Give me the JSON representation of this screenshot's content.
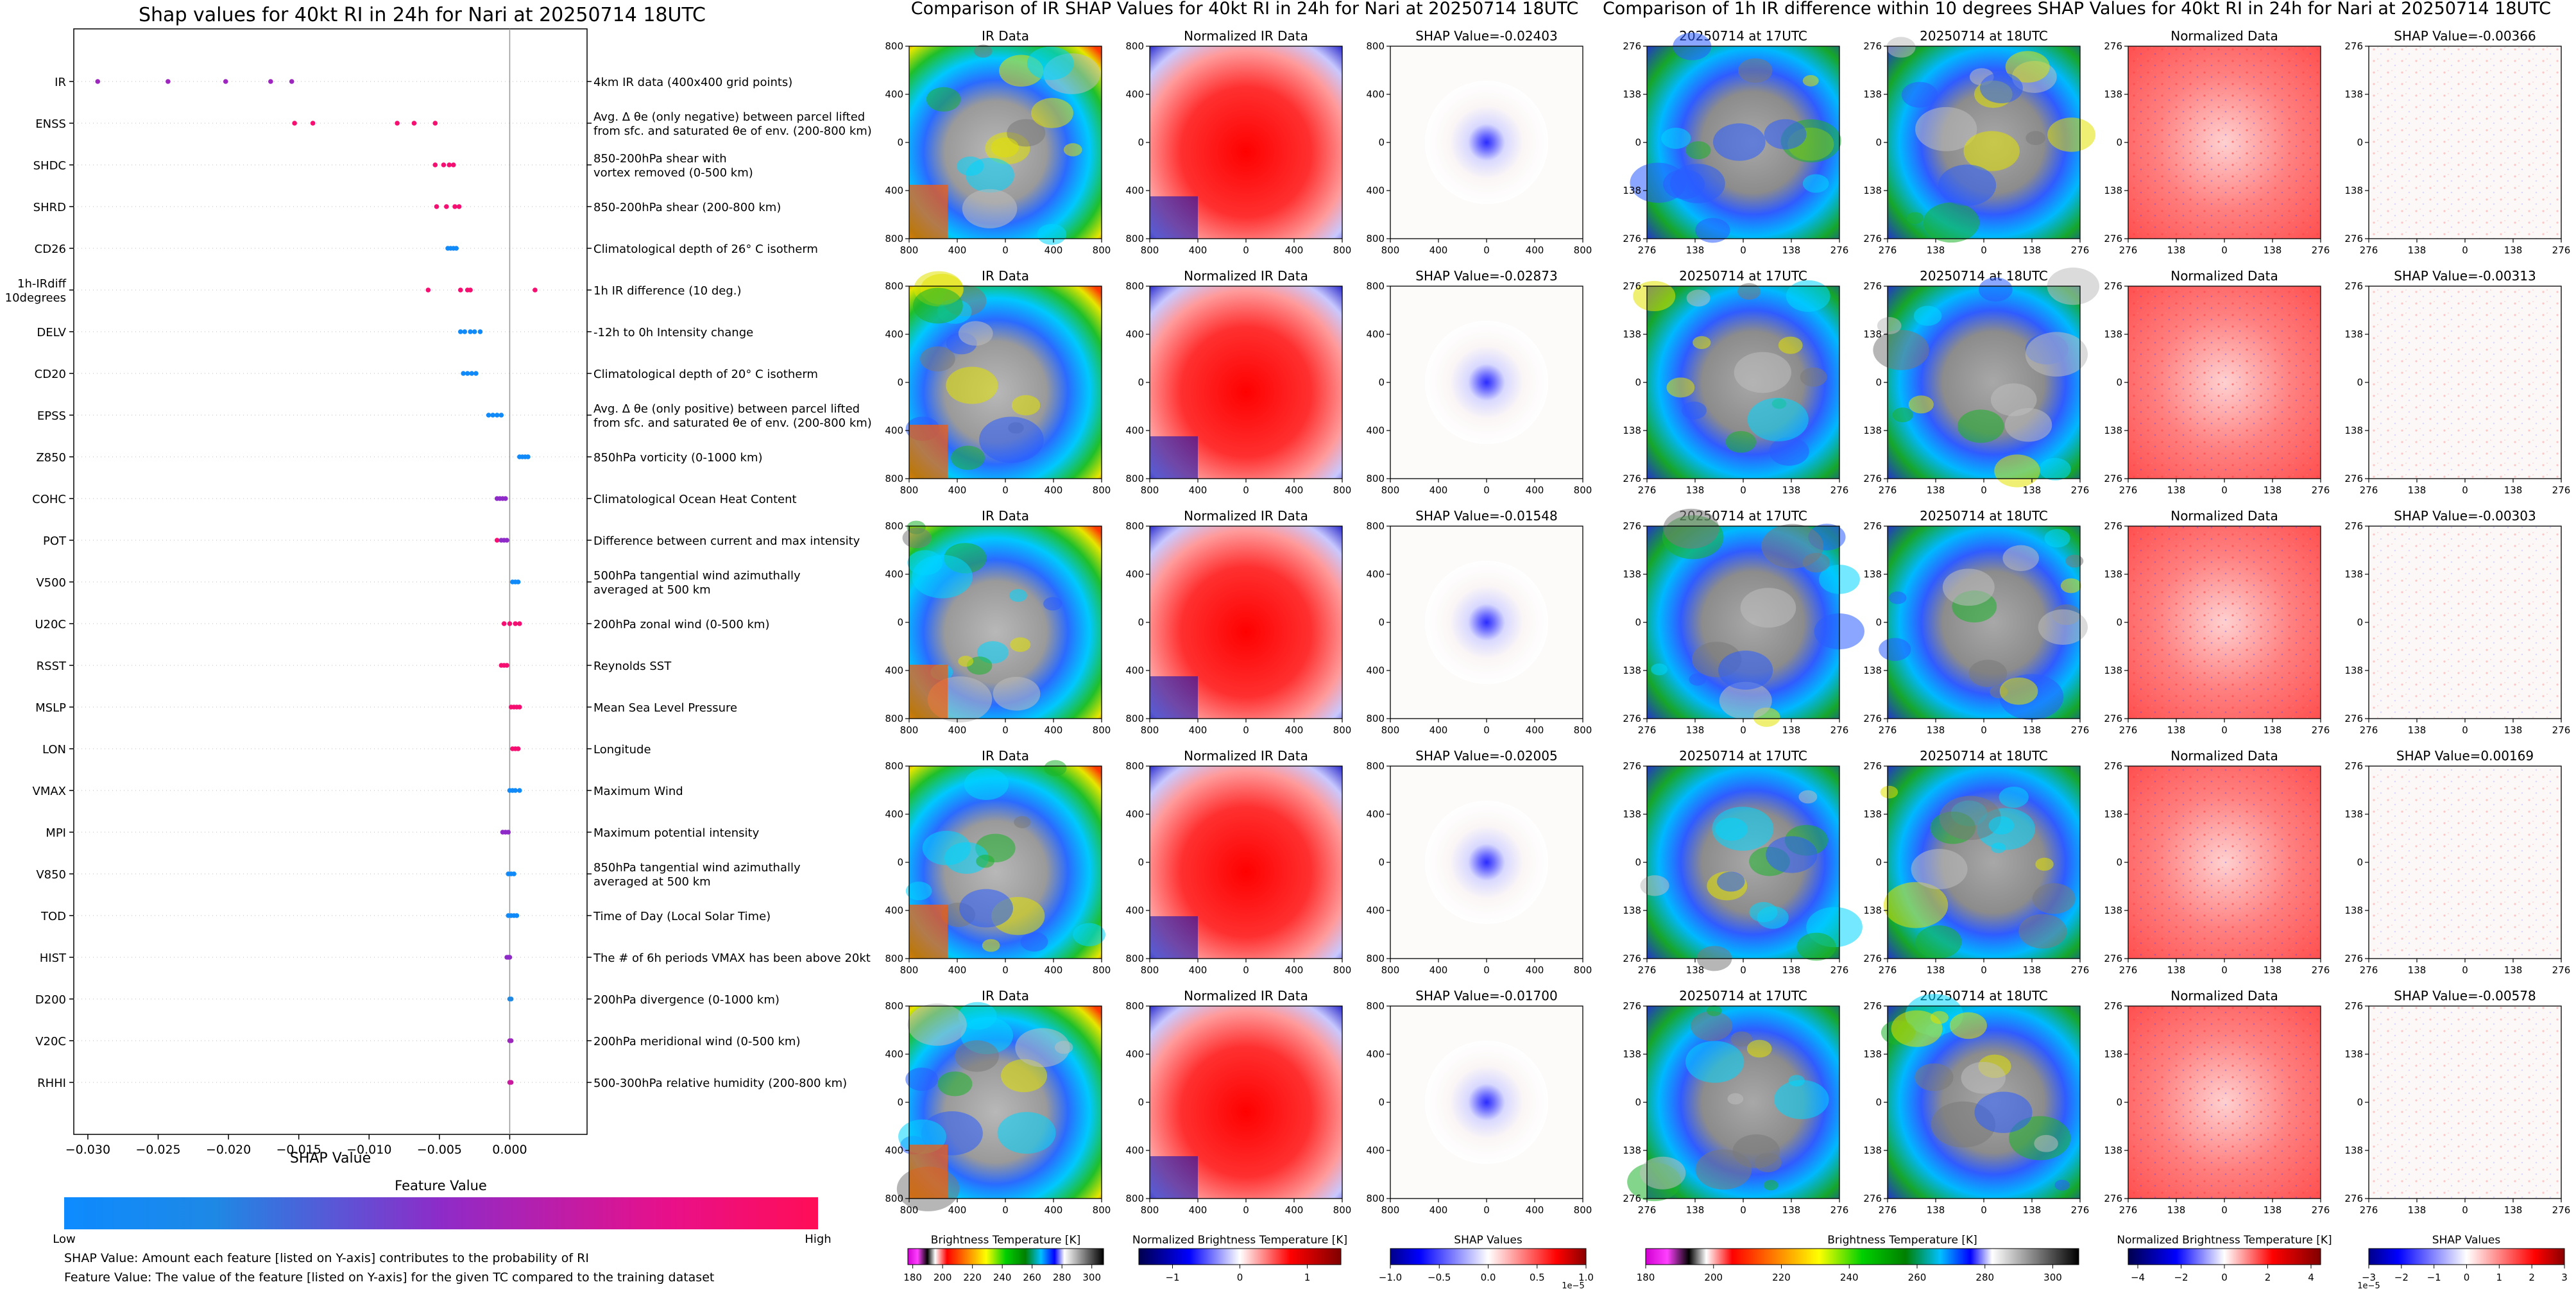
{
  "left_panel": {
    "title": "Shap values for 40kt RI in 24h for Nari at 20250714 18UTC",
    "xlabel": "SHAP Value",
    "xticks": [
      "−0.030",
      "−0.025",
      "−0.020",
      "−0.015",
      "−0.010",
      "−0.005",
      "0.000"
    ],
    "colorbar_title": "Feature Value",
    "colorbar_low": "Low",
    "colorbar_high": "High",
    "footnote_1": "SHAP Value: Amount each feature [listed on Y-axis] contributes to the probability of RI",
    "footnote_2": "Feature Value: The value of the feature [listed on Y-axis] for the given TC compared to the training dataset"
  },
  "middle_panel": {
    "title": "Comparison of IR SHAP Values for 40kt RI in 24h for Nari at 20250714 18UTC",
    "col_titles": [
      "IR Data",
      "Normalized IR Data"
    ],
    "shap_titles": [
      "SHAP Value=-0.02403",
      "SHAP Value=-0.02873",
      "SHAP Value=-0.01548",
      "SHAP Value=-0.02005",
      "SHAP Value=-0.01700"
    ],
    "ytick_labels": [
      "800",
      "400",
      "0",
      "400",
      "800"
    ],
    "xtick_labels": [
      "800",
      "400",
      "0",
      "400",
      "800"
    ],
    "axis_unit": "km",
    "cbar_labels": [
      "Brightness Temperature [K]",
      "Normalized Brightness Temperature [K]",
      "SHAP Values"
    ],
    "cbar1_ticks": [
      "180",
      "200",
      "220",
      "240",
      "260",
      "280",
      "300"
    ],
    "cbar2_ticks": [
      "−1",
      "0",
      "1"
    ],
    "cbar3_ticks": [
      "−1.0",
      "−0.5",
      "0.0",
      "0.5",
      "1.0"
    ],
    "cbar3_exp": "1e−5"
  },
  "right_panel": {
    "title": "Comparison of 1h IR difference within 10 degrees SHAP Values for 40kt RI in 24h for Nari at 20250714 18UTC",
    "col_titles": [
      "20250714 at 17UTC",
      "20250714 at 18UTC",
      "Normalized Data"
    ],
    "shap_titles": [
      "SHAP Value=-0.00366",
      "SHAP Value=-0.00313",
      "SHAP Value=-0.00303",
      "SHAP Value=0.00169",
      "SHAP Value=-0.00578"
    ],
    "tick_labels": [
      "276",
      "138",
      "0",
      "138",
      "276"
    ],
    "axis_unit": "km",
    "cbar_labels": [
      "Brightness Temperature [K]",
      "Normalized Brightness Temperature [K]",
      "SHAP Values"
    ],
    "cbar1_ticks": [
      "180",
      "200",
      "220",
      "240",
      "260",
      "280",
      "300"
    ],
    "cbar2_ticks": [
      "−4",
      "−2",
      "0",
      "2",
      "4"
    ],
    "cbar3_ticks": [
      "−3",
      "−2",
      "−1",
      "0",
      "1",
      "2",
      "3"
    ],
    "cbar3_exp": "1e−5"
  },
  "colors": {
    "low": "#1e88e5",
    "high": "#ff0d57"
  },
  "chart_data": {
    "type": "scatter",
    "title": "Shap values for 40kt RI in 24h for Nari at 20250714 18UTC",
    "xlabel": "SHAP Value",
    "xlim": [
      -0.031,
      0.0055
    ],
    "features": [
      {
        "name": "IR",
        "desc": "4km IR data (400x400 grid points)",
        "points": [
          [
            -0.0293,
            0.55
          ],
          [
            -0.0243,
            0.55
          ],
          [
            -0.0202,
            0.55
          ],
          [
            -0.017,
            0.55
          ],
          [
            -0.0155,
            0.55
          ]
        ]
      },
      {
        "name": "ENSS",
        "desc": "Avg. Δ θe (only negative) between parcel lifted\nfrom sfc. and saturated θe of env. (200-800 km)",
        "points": [
          [
            -0.0153,
            0.9
          ],
          [
            -0.014,
            0.9
          ],
          [
            -0.008,
            0.9
          ],
          [
            -0.0068,
            0.9
          ],
          [
            -0.0053,
            0.9
          ]
        ]
      },
      {
        "name": "SHDC",
        "desc": "850-200hPa shear with\nvortex removed (0-500 km)",
        "points": [
          [
            -0.0053,
            0.9
          ],
          [
            -0.0047,
            0.9
          ],
          [
            -0.0043,
            0.9
          ],
          [
            -0.004,
            0.9
          ]
        ]
      },
      {
        "name": "SHRD",
        "desc": "850-200hPa shear (200-800 km)",
        "points": [
          [
            -0.0052,
            0.9
          ],
          [
            -0.0045,
            0.9
          ],
          [
            -0.0039,
            0.9
          ],
          [
            -0.0036,
            0.9
          ]
        ]
      },
      {
        "name": "CD26",
        "desc": "Climatological depth of 26° C isotherm",
        "points": [
          [
            -0.0044,
            0.05
          ],
          [
            -0.0042,
            0.05
          ],
          [
            -0.004,
            0.05
          ],
          [
            -0.0038,
            0.05
          ]
        ]
      },
      {
        "name": "1h-IRdiff\n10degrees",
        "desc": "1h IR difference (10 deg.)",
        "points": [
          [
            -0.0058,
            0.9
          ],
          [
            -0.0035,
            0.9
          ],
          [
            -0.003,
            0.9
          ],
          [
            -0.0028,
            0.9
          ],
          [
            0.0018,
            0.9
          ]
        ]
      },
      {
        "name": "DELV",
        "desc": "-12h to 0h Intensity change",
        "points": [
          [
            -0.0035,
            0.05
          ],
          [
            -0.0032,
            0.05
          ],
          [
            -0.0028,
            0.05
          ],
          [
            -0.0025,
            0.05
          ],
          [
            -0.0021,
            0.05
          ]
        ]
      },
      {
        "name": "CD20",
        "desc": "Climatological depth of 20° C isotherm",
        "points": [
          [
            -0.0033,
            0.05
          ],
          [
            -0.003,
            0.05
          ],
          [
            -0.0027,
            0.05
          ],
          [
            -0.0024,
            0.05
          ]
        ]
      },
      {
        "name": "EPSS",
        "desc": "Avg. Δ θe (only positive) between parcel lifted\nfrom sfc. and saturated θe of env. (200-800 km)",
        "points": [
          [
            -0.0015,
            0.05
          ],
          [
            -0.0012,
            0.05
          ],
          [
            -0.0009,
            0.05
          ],
          [
            -0.0006,
            0.05
          ]
        ]
      },
      {
        "name": "Z850",
        "desc": "850hPa vorticity (0-1000 km)",
        "points": [
          [
            0.0007,
            0.05
          ],
          [
            0.0009,
            0.05
          ],
          [
            0.0011,
            0.05
          ],
          [
            0.0013,
            0.05
          ]
        ]
      },
      {
        "name": "COHC",
        "desc": "Climatological Ocean Heat Content",
        "points": [
          [
            -0.0009,
            0.5
          ],
          [
            -0.0007,
            0.5
          ],
          [
            -0.0005,
            0.5
          ],
          [
            -0.0003,
            0.5
          ]
        ]
      },
      {
        "name": "POT",
        "desc": "Difference between current and max intensity",
        "points": [
          [
            -0.0009,
            0.9
          ],
          [
            -0.0006,
            0.5
          ],
          [
            -0.0004,
            0.5
          ],
          [
            -0.0002,
            0.5
          ]
        ]
      },
      {
        "name": "V500",
        "desc": "500hPa tangential wind azimuthally\naveraged at 500 km",
        "points": [
          [
            0.0002,
            0.05
          ],
          [
            0.0004,
            0.05
          ],
          [
            0.0006,
            0.05
          ]
        ]
      },
      {
        "name": "U20C",
        "desc": "200hPa zonal wind (0-500 km)",
        "points": [
          [
            -0.0004,
            0.9
          ],
          [
            0.0,
            0.9
          ],
          [
            0.0004,
            0.9
          ],
          [
            0.0007,
            0.9
          ]
        ]
      },
      {
        "name": "RSST",
        "desc": "Reynolds SST",
        "points": [
          [
            -0.0006,
            0.9
          ],
          [
            -0.0004,
            0.9
          ],
          [
            -0.0002,
            0.9
          ]
        ]
      },
      {
        "name": "MSLP",
        "desc": "Mean Sea Level Pressure",
        "points": [
          [
            0.0001,
            0.9
          ],
          [
            0.0003,
            0.9
          ],
          [
            0.0005,
            0.9
          ],
          [
            0.0007,
            0.9
          ]
        ]
      },
      {
        "name": "LON",
        "desc": "Longitude",
        "points": [
          [
            0.0002,
            0.9
          ],
          [
            0.0004,
            0.9
          ],
          [
            0.0006,
            0.9
          ]
        ]
      },
      {
        "name": "VMAX",
        "desc": "Maximum Wind",
        "points": [
          [
            0.0,
            0.05
          ],
          [
            0.0002,
            0.05
          ],
          [
            0.0004,
            0.05
          ],
          [
            0.0007,
            0.05
          ]
        ]
      },
      {
        "name": "MPI",
        "desc": "Maximum potential intensity",
        "points": [
          [
            -0.0005,
            0.5
          ],
          [
            -0.0003,
            0.5
          ],
          [
            -0.0001,
            0.5
          ]
        ]
      },
      {
        "name": "V850",
        "desc": "850hPa tangential wind azimuthally\naveraged at 500 km",
        "points": [
          [
            -0.0001,
            0.05
          ],
          [
            0.0001,
            0.05
          ],
          [
            0.0003,
            0.05
          ]
        ]
      },
      {
        "name": "TOD",
        "desc": "Time of Day (Local Solar Time)",
        "points": [
          [
            -0.0001,
            0.05
          ],
          [
            0.0001,
            0.05
          ],
          [
            0.0003,
            0.05
          ],
          [
            0.0005,
            0.05
          ]
        ]
      },
      {
        "name": "HIST",
        "desc": "The # of 6h periods VMAX has been above 20kt",
        "points": [
          [
            -0.0002,
            0.5
          ],
          [
            -0.0001,
            0.5
          ],
          [
            0.0,
            0.5
          ]
        ]
      },
      {
        "name": "D200",
        "desc": "200hPa divergence (0-1000 km)",
        "points": [
          [
            0.0,
            0.2
          ],
          [
            0.0001,
            0.2
          ]
        ]
      },
      {
        "name": "V20C",
        "desc": "200hPa meridional wind (0-500 km)",
        "points": [
          [
            0.0,
            0.55
          ],
          [
            0.0001,
            0.55
          ]
        ]
      },
      {
        "name": "RHHI",
        "desc": "500-300hPa relative humidity (200-800 km)",
        "points": [
          [
            0.0,
            0.7
          ],
          [
            0.0001,
            0.7
          ]
        ]
      }
    ]
  }
}
